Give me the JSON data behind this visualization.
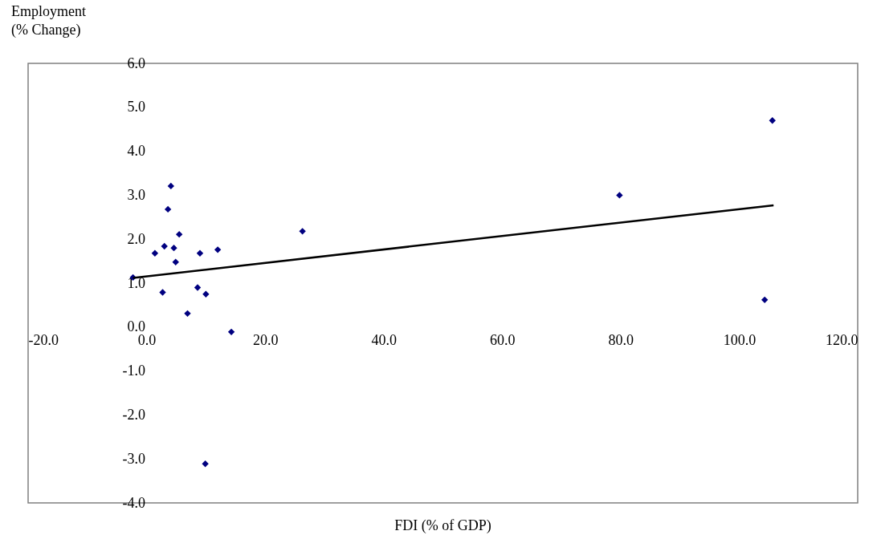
{
  "chart_data": {
    "type": "scatter",
    "xlabel": "FDI (% of GDP)",
    "ylabel": "Employment\n (% Change)",
    "xlim": [
      -20,
      120
    ],
    "xticks": [
      {
        "value": -20,
        "label": "-20.0"
      },
      {
        "value": 0,
        "label": "0.0"
      },
      {
        "value": 20,
        "label": "20.0"
      },
      {
        "value": 40,
        "label": "40.0"
      },
      {
        "value": 60,
        "label": "60.0"
      },
      {
        "value": 80,
        "label": "80.0"
      },
      {
        "value": 100,
        "label": "100.0"
      },
      {
        "value": 120,
        "label": "120.0"
      }
    ],
    "ylim": [
      -4,
      6
    ],
    "yticks": [
      {
        "value": -4,
        "label": "-4.0"
      },
      {
        "value": -3,
        "label": "-3.0"
      },
      {
        "value": -2,
        "label": "-2.0"
      },
      {
        "value": -1,
        "label": "-1.0"
      },
      {
        "value": 0,
        "label": "0.0"
      },
      {
        "value": 1,
        "label": "1.0"
      },
      {
        "value": 2,
        "label": "2.0"
      },
      {
        "value": 3,
        "label": "3.0"
      },
      {
        "value": 4,
        "label": "4.0"
      },
      {
        "value": 5,
        "label": "5.0"
      },
      {
        "value": 6,
        "label": "6.0"
      }
    ],
    "grid": false,
    "series": [
      {
        "marker": "diamond",
        "color": "#000080",
        "x": [
          -2.3,
          1.4,
          2.7,
          3.0,
          3.6,
          4.1,
          4.6,
          4.9,
          5.5,
          6.9,
          8.6,
          9.0,
          10.0,
          12.0,
          14.3,
          26.3,
          9.9,
          79.8,
          105.6,
          104.3
        ],
        "values": [
          1.13,
          1.68,
          0.79,
          1.84,
          2.68,
          3.21,
          1.8,
          1.48,
          2.11,
          0.31,
          0.9,
          1.68,
          0.75,
          1.76,
          -0.11,
          2.18,
          -3.11,
          3.0,
          4.7,
          0.62
        ]
      },
      {
        "type": "line",
        "color": "#000000",
        "x": [
          -2.3,
          105.8
        ],
        "values": [
          1.12,
          2.77
        ]
      }
    ]
  }
}
